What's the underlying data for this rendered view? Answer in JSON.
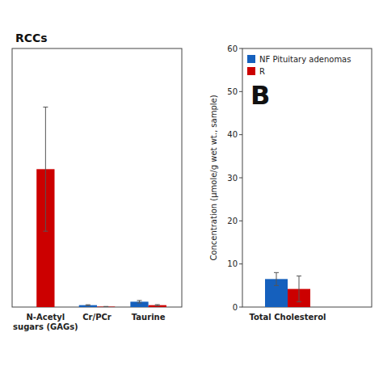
{
  "chart_data": [
    {
      "type": "bar",
      "title": "RCCs",
      "categories": [
        "N-Acetyl\nsugars (GAGs)",
        "Cr/PCr",
        "Taurine"
      ],
      "series": [
        {
          "color": "#1560bd",
          "values": [
            0,
            0.55,
            1.55
          ],
          "errors": [
            0,
            0.12,
            0.35
          ]
        },
        {
          "color": "#cc0000",
          "values": [
            40.0,
            0.12,
            0.55
          ],
          "errors": [
            18.0,
            0.05,
            0.15
          ]
        }
      ],
      "ylim": [
        0,
        75
      ],
      "tick_labels": "x"
    },
    {
      "type": "bar",
      "categories": [
        "Total Cholesterol"
      ],
      "ylabel": "Concentration (μmole/g wet wt., sample)",
      "annotations": [
        "B"
      ],
      "series": [
        {
          "name": "NF Pituitary adenomas",
          "color": "#1560bd",
          "values": [
            6.5
          ],
          "errors": [
            1.5
          ]
        },
        {
          "name": "R",
          "color": "#cc0000",
          "values": [
            4.2
          ],
          "errors": [
            3.0
          ]
        }
      ],
      "ylim": [
        0,
        60
      ],
      "yticks": [
        0,
        10,
        20,
        30,
        40,
        50,
        60
      ],
      "legend": "upper left"
    }
  ]
}
